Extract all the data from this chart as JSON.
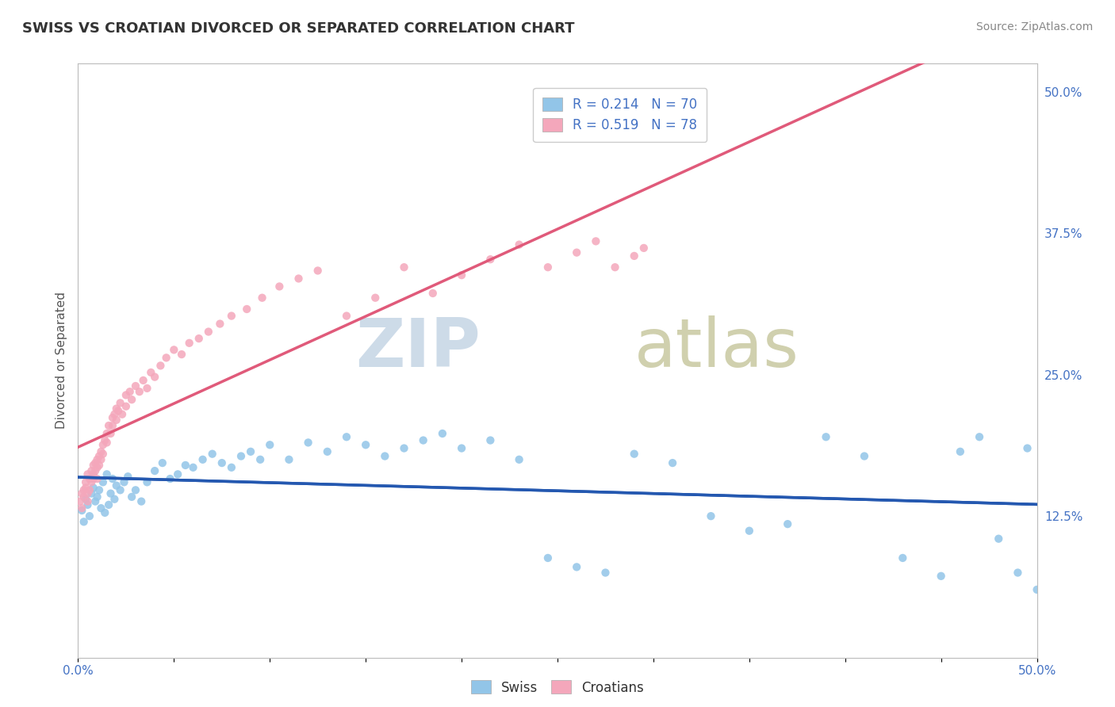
{
  "title": "SWISS VS CROATIAN DIVORCED OR SEPARATED CORRELATION CHART",
  "source": "Source: ZipAtlas.com",
  "ylabel": "Divorced or Separated",
  "legend_swiss": "Swiss",
  "legend_croatians": "Croatians",
  "swiss_R": "R = 0.214",
  "swiss_N": "N = 70",
  "croatian_R": "R = 0.519",
  "croatian_N": "N = 78",
  "swiss_color": "#92C5E8",
  "croatian_color": "#F4A7BB",
  "swiss_line_color": "#2458B0",
  "croatian_line_color": "#E05A7A",
  "watermark_zip": "ZIP",
  "watermark_atlas": "atlas",
  "watermark_color_zip": "#C8D8EC",
  "watermark_color_atlas": "#C0CCB8",
  "background_color": "#FFFFFF",
  "grid_color": "#CCCCCC",
  "right_yticks": [
    0.125,
    0.25,
    0.375,
    0.5
  ],
  "right_yticklabels": [
    "12.5%",
    "25.0%",
    "37.5%",
    "50.0%"
  ],
  "xmin": 0.0,
  "xmax": 0.5,
  "ymin": 0.0,
  "ymax": 0.525,
  "swiss_scatter_x": [
    0.002,
    0.003,
    0.004,
    0.005,
    0.006,
    0.007,
    0.008,
    0.009,
    0.01,
    0.011,
    0.012,
    0.013,
    0.014,
    0.015,
    0.016,
    0.017,
    0.018,
    0.019,
    0.02,
    0.022,
    0.024,
    0.026,
    0.028,
    0.03,
    0.033,
    0.036,
    0.04,
    0.044,
    0.048,
    0.052,
    0.056,
    0.06,
    0.065,
    0.07,
    0.075,
    0.08,
    0.085,
    0.09,
    0.095,
    0.1,
    0.11,
    0.12,
    0.13,
    0.14,
    0.15,
    0.16,
    0.17,
    0.18,
    0.19,
    0.2,
    0.215,
    0.23,
    0.245,
    0.26,
    0.275,
    0.29,
    0.31,
    0.33,
    0.35,
    0.37,
    0.39,
    0.41,
    0.43,
    0.45,
    0.46,
    0.47,
    0.48,
    0.49,
    0.495,
    0.5
  ],
  "swiss_scatter_y": [
    0.13,
    0.12,
    0.14,
    0.135,
    0.125,
    0.145,
    0.15,
    0.138,
    0.142,
    0.148,
    0.132,
    0.155,
    0.128,
    0.162,
    0.135,
    0.145,
    0.158,
    0.14,
    0.152,
    0.148,
    0.155,
    0.16,
    0.142,
    0.148,
    0.138,
    0.155,
    0.165,
    0.172,
    0.158,
    0.162,
    0.17,
    0.168,
    0.175,
    0.18,
    0.172,
    0.168,
    0.178,
    0.182,
    0.175,
    0.188,
    0.175,
    0.19,
    0.182,
    0.195,
    0.188,
    0.178,
    0.185,
    0.192,
    0.198,
    0.185,
    0.192,
    0.175,
    0.088,
    0.08,
    0.075,
    0.18,
    0.172,
    0.125,
    0.112,
    0.118,
    0.195,
    0.178,
    0.088,
    0.072,
    0.182,
    0.195,
    0.105,
    0.075,
    0.185,
    0.06
  ],
  "croatian_scatter_x": [
    0.001,
    0.002,
    0.002,
    0.003,
    0.003,
    0.004,
    0.004,
    0.005,
    0.005,
    0.005,
    0.006,
    0.006,
    0.007,
    0.007,
    0.008,
    0.008,
    0.008,
    0.009,
    0.009,
    0.01,
    0.01,
    0.01,
    0.011,
    0.011,
    0.012,
    0.012,
    0.013,
    0.013,
    0.014,
    0.015,
    0.015,
    0.016,
    0.017,
    0.018,
    0.018,
    0.019,
    0.02,
    0.02,
    0.021,
    0.022,
    0.023,
    0.025,
    0.025,
    0.027,
    0.028,
    0.03,
    0.032,
    0.034,
    0.036,
    0.038,
    0.04,
    0.043,
    0.046,
    0.05,
    0.054,
    0.058,
    0.063,
    0.068,
    0.074,
    0.08,
    0.088,
    0.096,
    0.105,
    0.115,
    0.125,
    0.14,
    0.155,
    0.17,
    0.185,
    0.2,
    0.215,
    0.23,
    0.245,
    0.26,
    0.27,
    0.28,
    0.29,
    0.295
  ],
  "croatian_scatter_y": [
    0.138,
    0.132,
    0.145,
    0.148,
    0.142,
    0.155,
    0.15,
    0.162,
    0.145,
    0.138,
    0.158,
    0.148,
    0.165,
    0.155,
    0.17,
    0.162,
    0.158,
    0.172,
    0.165,
    0.175,
    0.168,
    0.158,
    0.178,
    0.17,
    0.182,
    0.175,
    0.188,
    0.18,
    0.192,
    0.198,
    0.19,
    0.205,
    0.198,
    0.212,
    0.205,
    0.215,
    0.22,
    0.21,
    0.218,
    0.225,
    0.215,
    0.232,
    0.222,
    0.235,
    0.228,
    0.24,
    0.235,
    0.245,
    0.238,
    0.252,
    0.248,
    0.258,
    0.265,
    0.272,
    0.268,
    0.278,
    0.282,
    0.288,
    0.295,
    0.302,
    0.308,
    0.318,
    0.328,
    0.335,
    0.342,
    0.302,
    0.318,
    0.345,
    0.322,
    0.338,
    0.352,
    0.365,
    0.345,
    0.358,
    0.368,
    0.345,
    0.355,
    0.362
  ]
}
